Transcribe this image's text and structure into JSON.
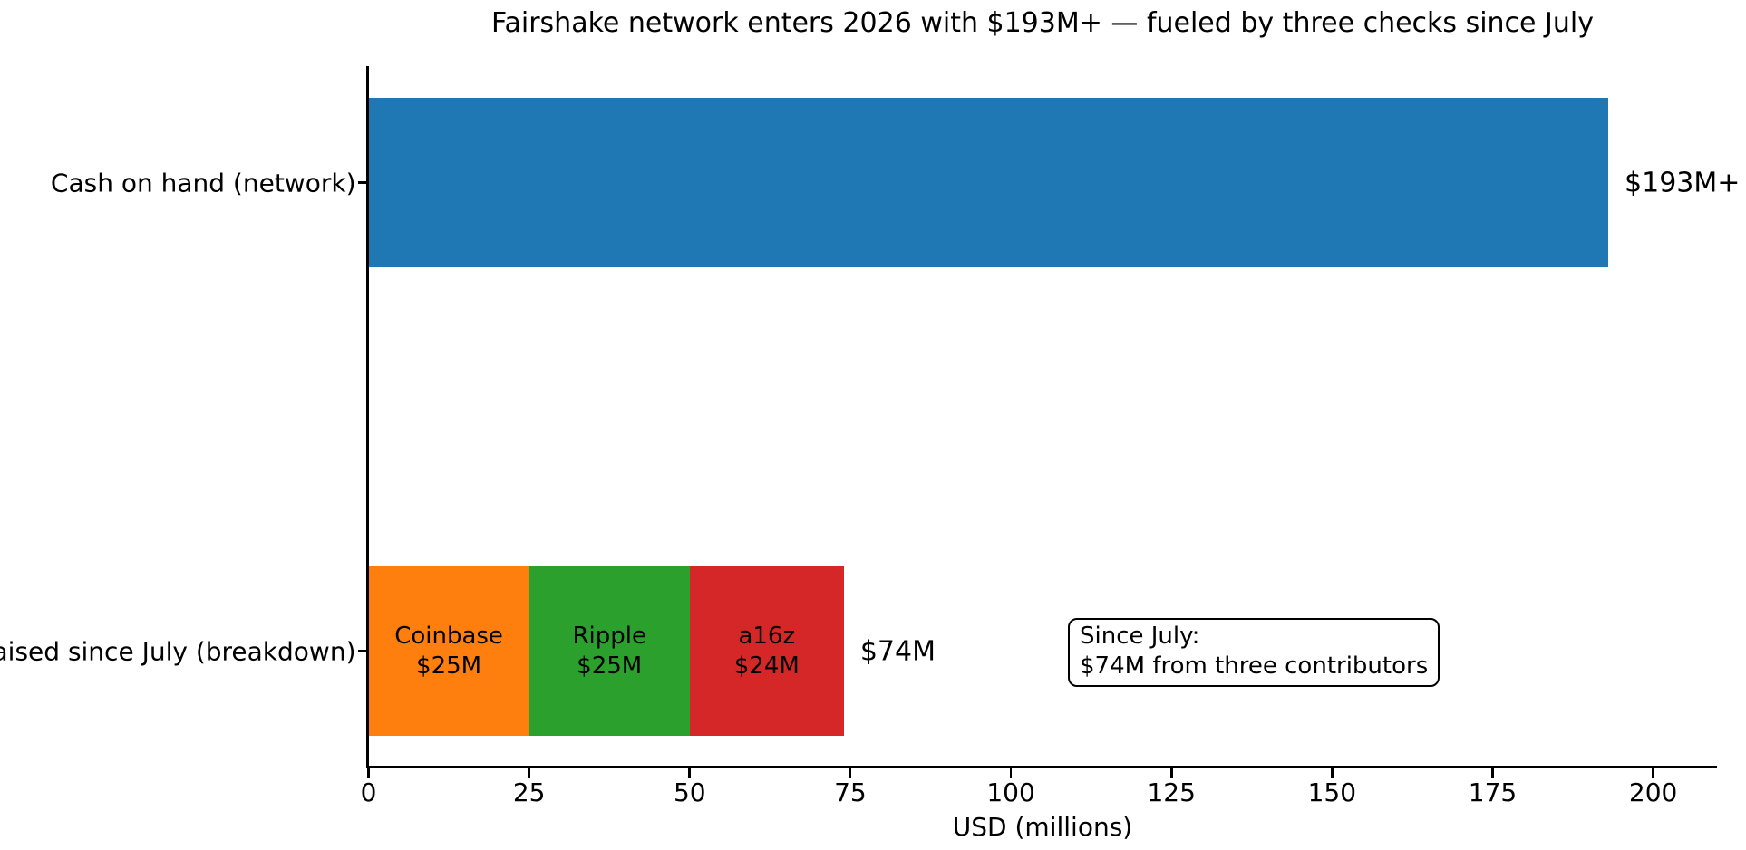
{
  "chart_data": {
    "type": "bar",
    "orientation": "horizontal",
    "title": "Fairshake network enters 2026 with $193M+ — fueled by three checks since July",
    "xlabel": "USD (millions)",
    "ylabel": "",
    "xlim": [
      0,
      210
    ],
    "xticks": [
      0,
      25,
      50,
      75,
      100,
      125,
      150,
      175,
      200
    ],
    "grid": false,
    "legend": "none",
    "categories": [
      "Cash on hand (network)",
      "Raised since July (breakdown)"
    ],
    "rows": [
      {
        "category": "Cash on hand (network)",
        "total_label": "$193M+",
        "segments": [
          {
            "name": "Cash on hand",
            "value": 193,
            "color": "#1f77b4",
            "label": ""
          }
        ]
      },
      {
        "category": "Raised since July (breakdown)",
        "total_label": "$74M",
        "segments": [
          {
            "name": "Coinbase",
            "value": 25,
            "color": "#ff7f0e",
            "label": "Coinbase\n$25M"
          },
          {
            "name": "Ripple",
            "value": 25,
            "color": "#2ca02c",
            "label": "Ripple\n$25M"
          },
          {
            "name": "a16z",
            "value": 24,
            "color": "#d62728",
            "label": "a16z\n$24M"
          }
        ]
      }
    ],
    "annotation": {
      "text": "Since July:\n$74M from three contributors"
    }
  }
}
